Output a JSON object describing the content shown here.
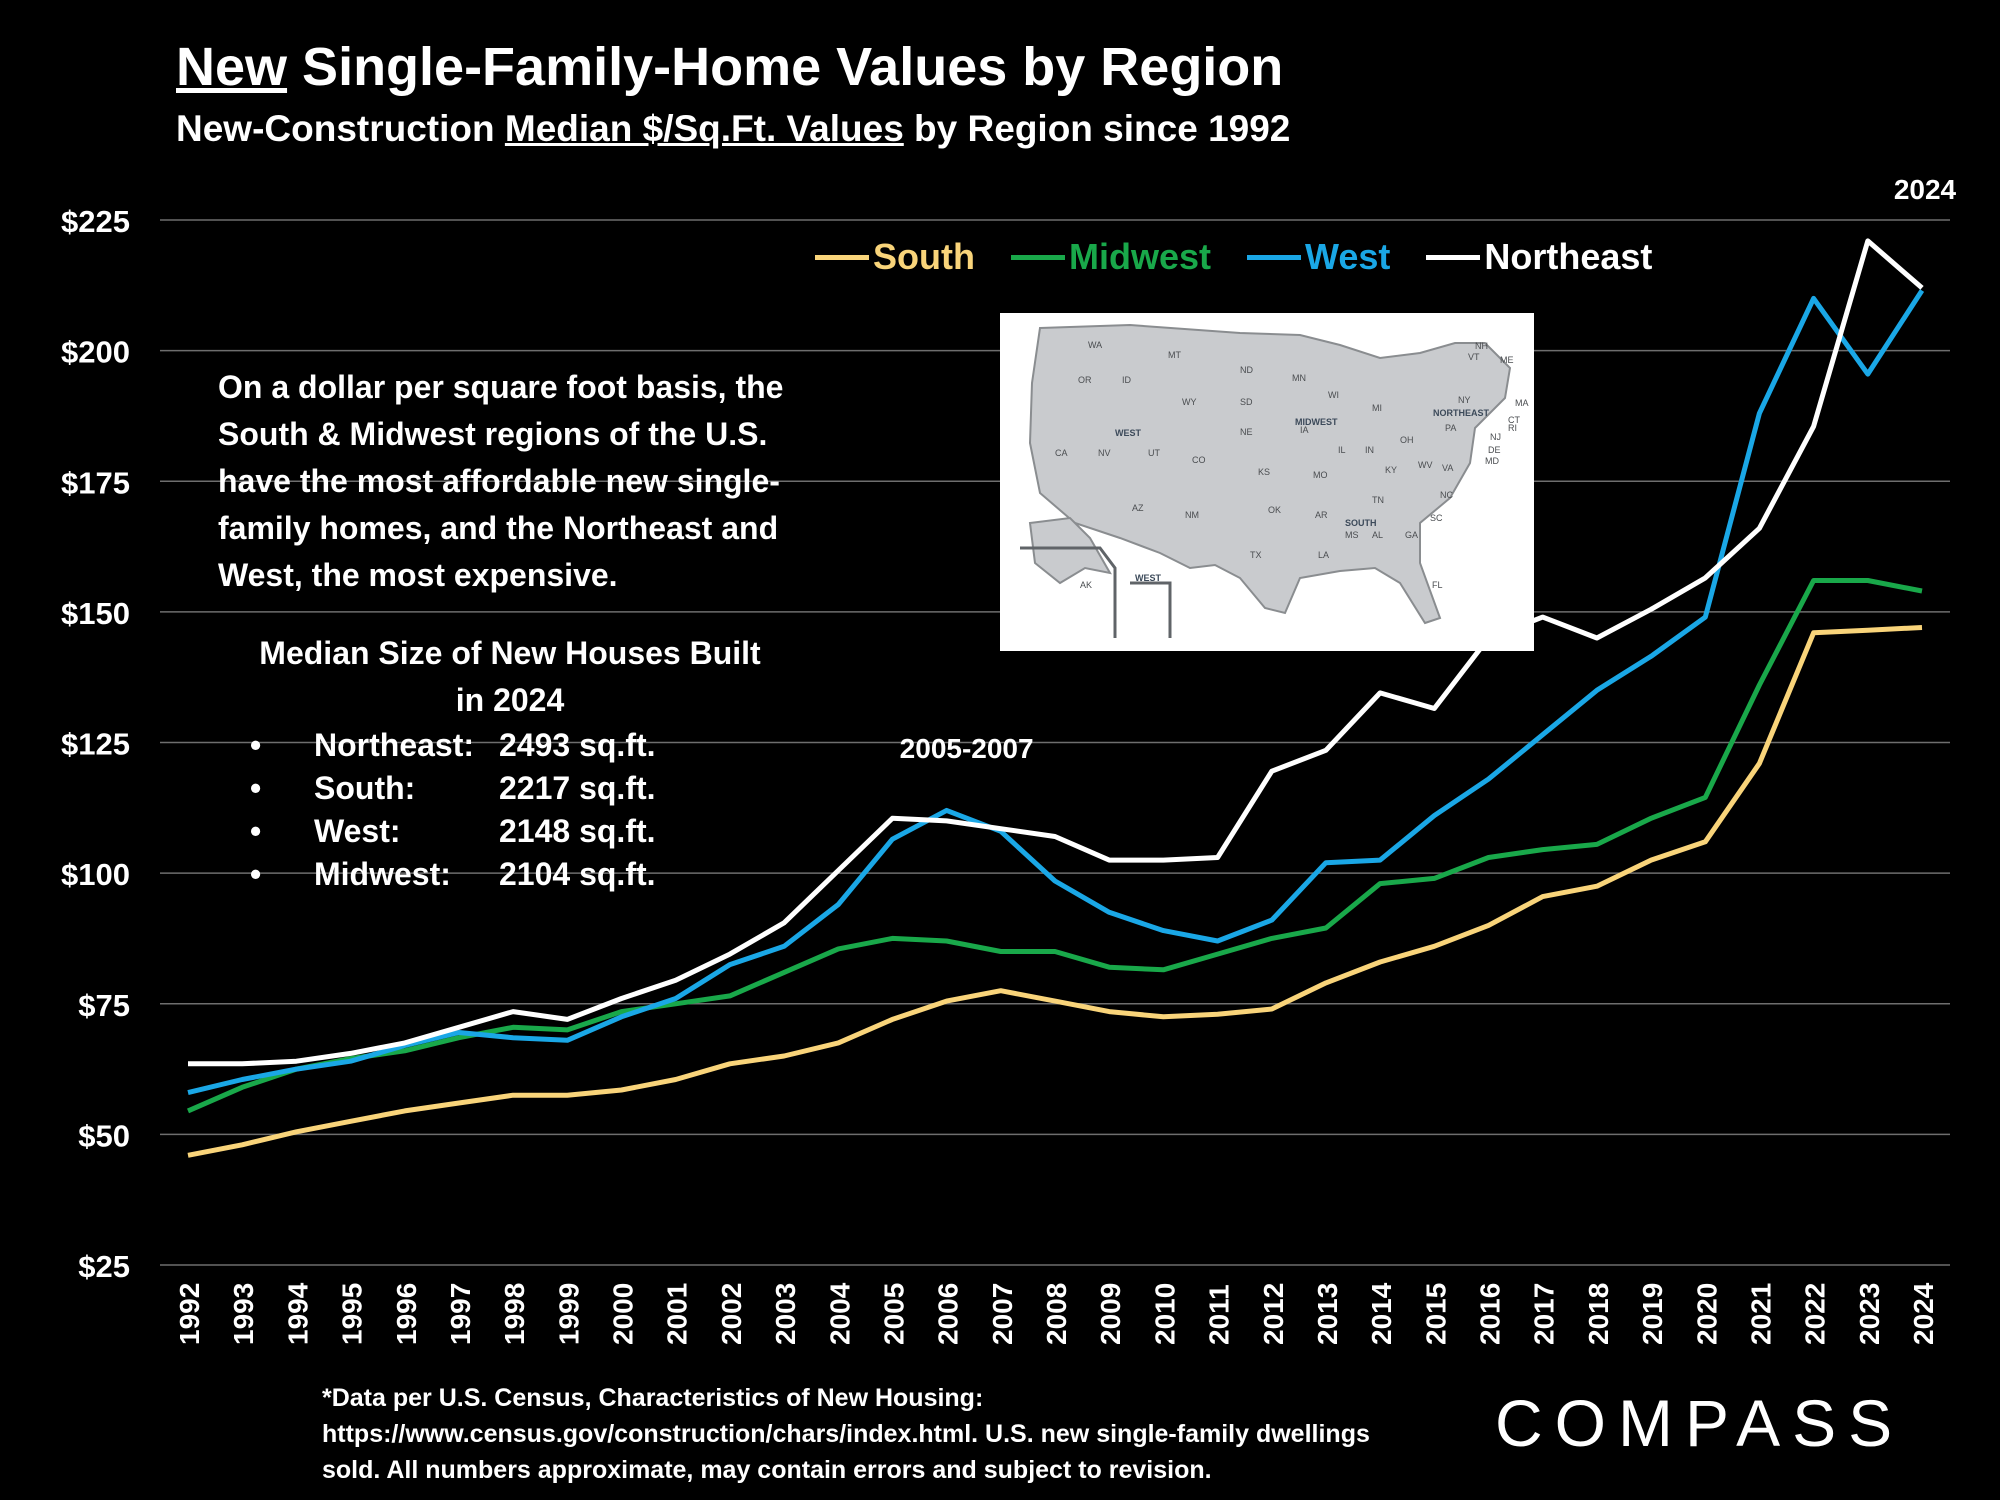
{
  "page": {
    "title_underlined": "New",
    "title_rest": " Single-Family-Home Values by Region",
    "subtitle_pre": "New-Construction ",
    "subtitle_underlined": "Median $/Sq.Ft. Values",
    "subtitle_post": " by Region since 1992",
    "annotation": "On a dollar per square foot basis, the South & Midwest regions of the U.S. have the most affordable new single-family homes, and the Northeast and West, the most expensive.",
    "sizes_title": "Median Size of New Houses Built in 2024",
    "sizes": [
      {
        "region": "Northeast:",
        "value": "2493 sq.ft."
      },
      {
        "region": "South:",
        "value": "2217 sq.ft."
      },
      {
        "region": "West:",
        "value": "2148 sq.ft."
      },
      {
        "region": "Midwest:",
        "value": "2104 sq.ft."
      }
    ],
    "bullet": "•",
    "footnote": "*Data per U.S. Census, Characteristics of New Housing: https://www.census.gov/construction/chars/index.html. U.S. new single-family dwellings sold. All numbers approximate, may contain errors and subject to revision.",
    "logo": "COMPASS",
    "map_labels": {
      "states": [
        "WA",
        "OR",
        "ID",
        "MT",
        "WY",
        "ND",
        "SD",
        "NE",
        "MN",
        "WI",
        "MI",
        "IA",
        "IL",
        "IN",
        "OH",
        "MO",
        "KS",
        "CO",
        "UT",
        "NV",
        "CA",
        "AZ",
        "NM",
        "OK",
        "TX",
        "AR",
        "LA",
        "MS",
        "AL",
        "GA",
        "FL",
        "SC",
        "NC",
        "TN",
        "KY",
        "VA",
        "WV",
        "PA",
        "NY",
        "VT",
        "NH",
        "ME",
        "MA",
        "CT",
        "RI",
        "NJ",
        "DE",
        "MD",
        "AK"
      ],
      "regions": [
        "WEST",
        "MIDWEST",
        "NORTHEAST",
        "SOUTH",
        "WEST"
      ]
    }
  },
  "colors": {
    "South": "#f9d47a",
    "Midwest": "#19a84a",
    "West": "#1aa7e6",
    "Northeast": "#ffffff",
    "grid": "#6e6e6e"
  },
  "chart_data": {
    "type": "line",
    "x": [
      "1992",
      "1993",
      "1994",
      "1995",
      "1996",
      "1997",
      "1998",
      "1999",
      "2000",
      "2001",
      "2002",
      "2003",
      "2004",
      "2005",
      "2006",
      "2007",
      "2008",
      "2009",
      "2010",
      "2011",
      "2012",
      "2013",
      "2014",
      "2015",
      "2016",
      "2017",
      "2018",
      "2019",
      "2020",
      "2021",
      "2022",
      "2023",
      "2024"
    ],
    "series": [
      {
        "name": "South",
        "values": [
          46,
          48,
          50.5,
          52.5,
          54.5,
          56,
          57.5,
          57.5,
          58.5,
          60.5,
          63.5,
          65,
          67.5,
          72,
          75.5,
          77.5,
          75.5,
          73.5,
          72.5,
          73,
          74,
          79,
          83,
          86,
          90,
          95.5,
          97.5,
          102.5,
          106,
          121,
          146,
          146.5,
          147
        ]
      },
      {
        "name": "Midwest",
        "values": [
          54.5,
          59,
          62.5,
          64.5,
          66,
          68.5,
          70.5,
          70,
          73.5,
          75,
          76.5,
          81,
          85.5,
          87.5,
          87,
          85,
          85,
          82,
          81.5,
          84.5,
          87.5,
          89.5,
          98,
          99,
          103,
          104.5,
          105.5,
          110.5,
          114.5,
          136,
          156,
          156,
          154
        ]
      },
      {
        "name": "West",
        "values": [
          58,
          60.5,
          62.5,
          64,
          67,
          69.5,
          68.5,
          68,
          72.5,
          76,
          82.5,
          86,
          94,
          106.5,
          112,
          108,
          98.5,
          92.5,
          89,
          87,
          91,
          102,
          102.5,
          111,
          118,
          126.5,
          135,
          141.5,
          149,
          188,
          210,
          195.5,
          211.5
        ]
      },
      {
        "name": "Northeast",
        "values": [
          63.5,
          63.5,
          64,
          65.5,
          67.5,
          70.5,
          73.5,
          72,
          76,
          79.5,
          84.5,
          90.5,
          100.5,
          110.5,
          110,
          108.5,
          107,
          102.5,
          102.5,
          103,
          119.5,
          123.5,
          134.5,
          131.5,
          145,
          149,
          145,
          150.5,
          156.5,
          166,
          185.5,
          221,
          212
        ]
      }
    ],
    "y_ticks": [
      "$25",
      "$50",
      "$75",
      "$100",
      "$125",
      "$150",
      "$175",
      "$200",
      "$225"
    ],
    "y_tick_values": [
      25,
      50,
      75,
      100,
      125,
      150,
      175,
      200,
      225
    ],
    "ylim": [
      25,
      225
    ],
    "annotations": [
      {
        "text": "2005-2007",
        "x": "2006",
        "y": 122
      },
      {
        "text": "2024",
        "x": "2024",
        "y": 229
      }
    ],
    "legend_position": "top-right",
    "grid": true
  }
}
